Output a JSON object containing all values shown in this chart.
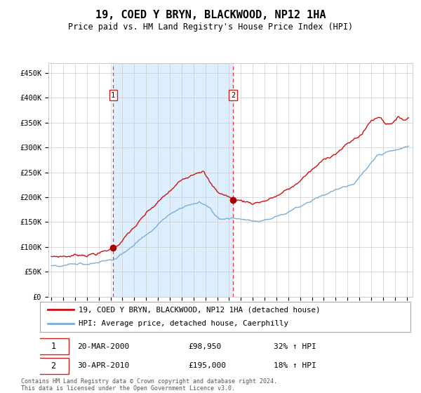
{
  "title": "19, COED Y BRYN, BLACKWOOD, NP12 1HA",
  "subtitle": "Price paid vs. HM Land Registry's House Price Index (HPI)",
  "legend_line1": "19, COED Y BRYN, BLACKWOOD, NP12 1HA (detached house)",
  "legend_line2": "HPI: Average price, detached house, Caerphilly",
  "purchase1_date": "20-MAR-2000",
  "purchase1_price": "£98,950",
  "purchase1_hpi": "32% ↑ HPI",
  "purchase2_date": "30-APR-2010",
  "purchase2_price": "£195,000",
  "purchase2_hpi": "18% ↑ HPI",
  "footnote": "Contains HM Land Registry data © Crown copyright and database right 2024.\nThis data is licensed under the Open Government Licence v3.0.",
  "ylim": [
    0,
    470000
  ],
  "yticks": [
    0,
    50000,
    100000,
    150000,
    200000,
    250000,
    300000,
    350000,
    400000,
    450000
  ],
  "ytick_labels": [
    "£0",
    "£50K",
    "£100K",
    "£150K",
    "£200K",
    "£250K",
    "£300K",
    "£350K",
    "£400K",
    "£450K"
  ],
  "hpi_color": "#7aaed6",
  "price_color": "#cc1111",
  "marker_color": "#aa0000",
  "vline_color": "#ee3333",
  "shade_color": "#ddeeff",
  "grid_color": "#cccccc",
  "bg_color": "#ffffff",
  "purchase1_year": 2000.22,
  "purchase2_year": 2010.33,
  "purchase1_value": 98950,
  "purchase2_value": 195000
}
